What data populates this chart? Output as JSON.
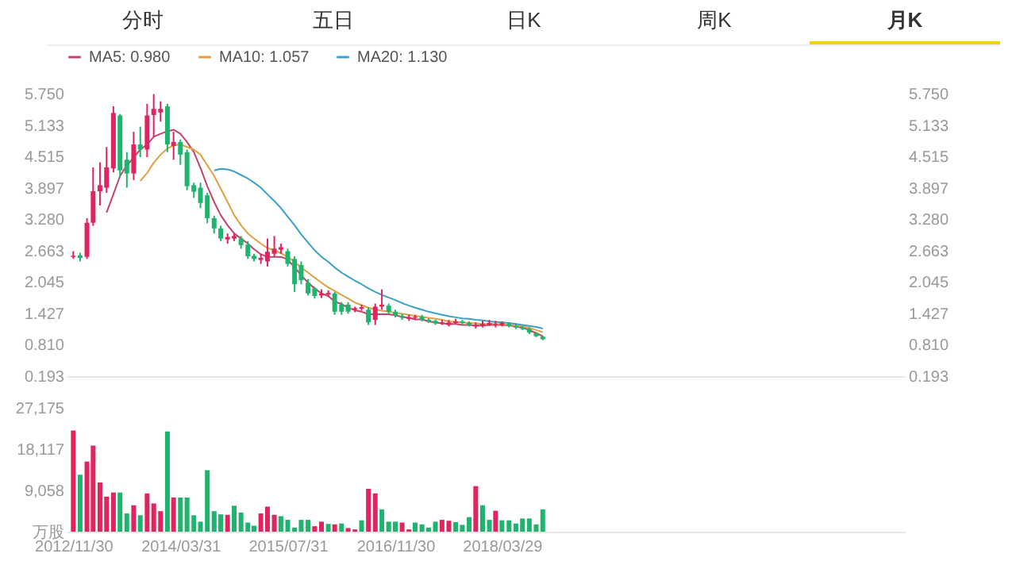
{
  "chart_data": [
    {
      "type": "candlestick",
      "annotations": [
        "分时",
        "五日",
        "日K",
        "周K",
        "月K"
      ],
      "x": [
        "2012-11-30",
        "2012-12-31",
        "2013-01-31",
        "2013-02-28",
        "2013-03-31",
        "2013-04-30",
        "2013-05-31",
        "2013-06-30",
        "2013-07-31",
        "2013-08-31",
        "2013-09-30",
        "2013-10-31",
        "2013-11-30",
        "2013-12-31",
        "2014-01-31",
        "2014-02-28",
        "2014-03-31",
        "2014-04-30",
        "2014-05-31",
        "2014-06-30",
        "2014-07-31",
        "2014-08-31",
        "2014-09-30",
        "2014-10-31",
        "2014-11-30",
        "2014-12-31",
        "2015-01-31",
        "2015-02-28",
        "2015-03-31",
        "2015-04-30",
        "2015-05-31",
        "2015-06-30",
        "2015-07-31",
        "2015-08-31",
        "2015-09-30",
        "2015-10-31",
        "2015-11-30",
        "2015-12-31",
        "2016-01-31",
        "2016-02-29",
        "2016-03-31",
        "2016-04-30",
        "2016-05-31",
        "2016-06-30",
        "2016-07-31",
        "2016-08-31",
        "2016-09-30",
        "2016-10-31",
        "2016-11-30",
        "2016-12-31",
        "2017-01-31",
        "2017-02-28",
        "2017-03-31",
        "2017-04-30",
        "2017-05-31",
        "2017-06-30",
        "2017-07-31",
        "2017-08-31",
        "2017-09-30",
        "2017-10-31",
        "2017-11-30",
        "2017-12-31",
        "2018-01-31",
        "2018-02-28",
        "2018-03-29",
        "2018-04-30",
        "2018-05-31",
        "2018-06-30",
        "2018-07-31",
        "2018-08-31",
        "2018-09-30"
      ],
      "ohlc": [
        [
          2.54,
          2.65,
          2.5,
          2.56
        ],
        [
          2.57,
          2.62,
          2.45,
          2.52
        ],
        [
          2.54,
          3.3,
          2.5,
          3.21
        ],
        [
          3.21,
          4.3,
          3.15,
          3.83
        ],
        [
          3.83,
          4.4,
          3.55,
          3.95
        ],
        [
          3.9,
          4.7,
          3.8,
          4.3
        ],
        [
          4.28,
          5.5,
          4.2,
          5.37
        ],
        [
          5.32,
          5.35,
          4.1,
          4.24
        ],
        [
          4.45,
          4.6,
          3.9,
          4.18
        ],
        [
          4.18,
          5.0,
          4.05,
          4.75
        ],
        [
          4.75,
          5.1,
          4.5,
          4.65
        ],
        [
          4.65,
          5.55,
          4.5,
          5.32
        ],
        [
          5.33,
          5.74,
          4.9,
          5.45
        ],
        [
          5.38,
          5.6,
          5.2,
          5.45
        ],
        [
          5.5,
          5.55,
          4.6,
          4.75
        ],
        [
          4.72,
          5.0,
          4.45,
          4.8
        ],
        [
          4.8,
          4.85,
          4.35,
          4.55
        ],
        [
          4.6,
          4.65,
          3.85,
          3.93
        ],
        [
          3.95,
          4.0,
          3.7,
          3.82
        ],
        [
          3.9,
          4.0,
          3.5,
          3.6
        ],
        [
          3.75,
          3.8,
          3.2,
          3.3
        ],
        [
          3.3,
          3.35,
          3.0,
          3.1
        ],
        [
          3.1,
          3.15,
          2.85,
          2.9
        ],
        [
          2.88,
          3.0,
          2.8,
          2.93
        ],
        [
          2.9,
          3.0,
          2.85,
          2.95
        ],
        [
          2.9,
          2.95,
          2.7,
          2.77
        ],
        [
          2.78,
          2.85,
          2.5,
          2.55
        ],
        [
          2.56,
          2.6,
          2.45,
          2.5
        ],
        [
          2.48,
          2.6,
          2.4,
          2.52
        ],
        [
          2.45,
          2.9,
          2.35,
          2.64
        ],
        [
          2.6,
          2.95,
          2.55,
          2.7
        ],
        [
          2.68,
          2.8,
          2.6,
          2.73
        ],
        [
          2.65,
          2.7,
          2.35,
          2.4
        ],
        [
          2.5,
          2.55,
          1.85,
          2.0
        ],
        [
          2.38,
          2.45,
          2.0,
          2.08
        ],
        [
          2.03,
          2.1,
          1.78,
          1.82
        ],
        [
          1.92,
          1.95,
          1.72,
          1.77
        ],
        [
          1.78,
          1.9,
          1.73,
          1.82
        ],
        [
          1.8,
          1.88,
          1.75,
          1.83
        ],
        [
          1.82,
          1.85,
          1.4,
          1.46
        ],
        [
          1.6,
          1.65,
          1.4,
          1.46
        ],
        [
          1.6,
          1.65,
          1.42,
          1.46
        ],
        [
          1.5,
          1.56,
          1.45,
          1.53
        ],
        [
          1.52,
          1.6,
          1.48,
          1.55
        ],
        [
          1.5,
          1.55,
          1.2,
          1.25
        ],
        [
          1.3,
          1.62,
          1.2,
          1.56
        ],
        [
          1.56,
          1.9,
          1.5,
          1.6
        ],
        [
          1.58,
          1.62,
          1.42,
          1.46
        ],
        [
          1.46,
          1.5,
          1.35,
          1.38
        ],
        [
          1.38,
          1.42,
          1.3,
          1.34
        ],
        [
          1.32,
          1.4,
          1.28,
          1.35
        ],
        [
          1.34,
          1.4,
          1.3,
          1.36
        ],
        [
          1.36,
          1.4,
          1.27,
          1.3
        ],
        [
          1.3,
          1.33,
          1.24,
          1.27
        ],
        [
          1.28,
          1.3,
          1.2,
          1.23
        ],
        [
          1.22,
          1.3,
          1.2,
          1.25
        ],
        [
          1.2,
          1.3,
          1.17,
          1.25
        ],
        [
          1.24,
          1.32,
          1.22,
          1.27
        ],
        [
          1.27,
          1.3,
          1.21,
          1.24
        ],
        [
          1.24,
          1.27,
          1.17,
          1.2
        ],
        [
          1.17,
          1.25,
          1.13,
          1.2
        ],
        [
          1.18,
          1.28,
          1.15,
          1.22
        ],
        [
          1.2,
          1.3,
          1.18,
          1.24
        ],
        [
          1.2,
          1.28,
          1.15,
          1.22
        ],
        [
          1.2,
          1.27,
          1.17,
          1.24
        ],
        [
          1.22,
          1.25,
          1.15,
          1.18
        ],
        [
          1.18,
          1.22,
          1.12,
          1.15
        ],
        [
          1.15,
          1.18,
          1.1,
          1.12
        ],
        [
          1.12,
          1.15,
          1.02,
          1.05
        ],
        [
          1.04,
          1.06,
          0.96,
          0.98
        ],
        [
          0.97,
          0.99,
          0.9,
          0.92
        ]
      ],
      "colors": [
        "#e0245e",
        "#1fb46e",
        "#e0245e",
        "#e0245e",
        "#e0245e",
        "#e0245e",
        "#e0245e",
        "#1fb46e",
        "#1fb46e",
        "#e0245e",
        "#1fb46e",
        "#e0245e",
        "#e0245e",
        "#e0245e",
        "#1fb46e",
        "#e0245e",
        "#1fb46e",
        "#1fb46e",
        "#1fb46e",
        "#1fb46e",
        "#1fb46e",
        "#1fb46e",
        "#1fb46e",
        "#e0245e",
        "#e0245e",
        "#1fb46e",
        "#1fb46e",
        "#1fb46e",
        "#e0245e",
        "#e0245e",
        "#e0245e",
        "#e0245e",
        "#1fb46e",
        "#1fb46e",
        "#1fb46e",
        "#1fb46e",
        "#1fb46e",
        "#e0245e",
        "#e0245e",
        "#1fb46e",
        "#1fb46e",
        "#1fb46e",
        "#e0245e",
        "#e0245e",
        "#1fb46e",
        "#e0245e",
        "#e0245e",
        "#1fb46e",
        "#1fb46e",
        "#1fb46e",
        "#e0245e",
        "#e0245e",
        "#1fb46e",
        "#1fb46e",
        "#1fb46e",
        "#e0245e",
        "#e0245e",
        "#e0245e",
        "#1fb46e",
        "#1fb46e",
        "#e0245e",
        "#e0245e",
        "#e0245e",
        "#e0245e",
        "#e0245e",
        "#1fb46e",
        "#1fb46e",
        "#1fb46e",
        "#1fb46e",
        "#1fb46e",
        "#1fb46e"
      ],
      "series": [
        {
          "type": "line",
          "name": "MA5: 0.980",
          "color": "#c2436a",
          "values": [
            null,
            null,
            null,
            null,
            null,
            3.41,
            3.77,
            4.13,
            4.34,
            4.49,
            4.65,
            4.75,
            4.9,
            4.96,
            5.01,
            5.04,
            4.96,
            4.8,
            4.6,
            4.29,
            3.93,
            3.62,
            3.36,
            3.16,
            3.0,
            2.9,
            2.8,
            2.69,
            2.59,
            2.54,
            2.54,
            2.54,
            2.49,
            2.33,
            2.18,
            2.03,
            1.92,
            1.82,
            1.77,
            1.66,
            1.61,
            1.54,
            1.49,
            1.46,
            1.41,
            1.41,
            1.41,
            1.41,
            1.39,
            1.36,
            1.34,
            1.31,
            1.31,
            1.27,
            1.25,
            1.23,
            1.22,
            1.22,
            1.2,
            1.2,
            1.19,
            1.19,
            1.2,
            1.2,
            1.2,
            1.19,
            1.17,
            1.15,
            1.1,
            1.04,
            0.98
          ]
        },
        {
          "type": "line",
          "name": "MA10: 1.057",
          "color": "#e0a040",
          "values": [
            null,
            null,
            null,
            null,
            null,
            null,
            null,
            null,
            null,
            null,
            4.03,
            4.19,
            4.39,
            4.55,
            4.67,
            4.73,
            4.75,
            4.7,
            4.65,
            4.55,
            4.34,
            4.13,
            3.88,
            3.62,
            3.36,
            3.16,
            3.0,
            2.9,
            2.8,
            2.71,
            2.67,
            2.61,
            2.54,
            2.44,
            2.33,
            2.23,
            2.13,
            2.03,
            1.94,
            1.87,
            1.79,
            1.72,
            1.64,
            1.59,
            1.54,
            1.5,
            1.48,
            1.46,
            1.44,
            1.42,
            1.4,
            1.38,
            1.36,
            1.34,
            1.32,
            1.3,
            1.27,
            1.26,
            1.25,
            1.24,
            1.23,
            1.22,
            1.22,
            1.22,
            1.21,
            1.2,
            1.19,
            1.17,
            1.14,
            1.1,
            1.06
          ]
        },
        {
          "type": "line",
          "name": "MA20: 1.130",
          "color": "#3aa0c8",
          "values": [
            null,
            null,
            null,
            null,
            null,
            null,
            null,
            null,
            null,
            null,
            null,
            null,
            null,
            null,
            null,
            null,
            null,
            null,
            null,
            null,
            null,
            4.24,
            4.27,
            4.26,
            4.22,
            4.15,
            4.08,
            4.0,
            3.9,
            3.77,
            3.64,
            3.5,
            3.33,
            3.16,
            2.98,
            2.82,
            2.67,
            2.54,
            2.44,
            2.33,
            2.23,
            2.15,
            2.07,
            2.0,
            1.92,
            1.85,
            1.79,
            1.74,
            1.69,
            1.63,
            1.58,
            1.54,
            1.5,
            1.46,
            1.43,
            1.4,
            1.37,
            1.35,
            1.33,
            1.32,
            1.3,
            1.29,
            1.27,
            1.26,
            1.25,
            1.24,
            1.22,
            1.2,
            1.18,
            1.16,
            1.13
          ]
        }
      ],
      "xlim": [
        "2012-10-31",
        "2023-03-31"
      ],
      "ylim": [
        0.193,
        5.75
      ],
      "yticks": [
        {
          "value": 0.193,
          "label": "0.193"
        },
        {
          "value": 0.81,
          "label": "0.810"
        },
        {
          "value": 1.427,
          "label": "1.427"
        },
        {
          "value": 2.045,
          "label": "2.045"
        },
        {
          "value": 2.663,
          "label": "2.663"
        },
        {
          "value": 3.28,
          "label": "3.280"
        },
        {
          "value": 3.897,
          "label": "3.897"
        },
        {
          "value": 4.515,
          "label": "4.515"
        },
        {
          "value": 5.133,
          "label": "5.133"
        },
        {
          "value": 5.75,
          "label": "5.750"
        }
      ],
      "y2lim": [
        0.193,
        5.75
      ],
      "y2ticks": [
        {
          "value": 0.193,
          "label": "0.193"
        },
        {
          "value": 0.81,
          "label": "0.810"
        },
        {
          "value": 1.427,
          "label": "1.427"
        },
        {
          "value": 2.045,
          "label": "2.045"
        },
        {
          "value": 2.663,
          "label": "2.663"
        },
        {
          "value": 3.28,
          "label": "3.280"
        },
        {
          "value": 3.897,
          "label": "3.897"
        },
        {
          "value": 4.515,
          "label": "4.515"
        },
        {
          "value": 5.133,
          "label": "5.133"
        },
        {
          "value": 5.75,
          "label": "5.750"
        }
      ],
      "legend": "top left",
      "tick_labels": "y"
    },
    {
      "type": "bar",
      "x": [
        "2012-11-30",
        "2012-12-31",
        "2013-01-31",
        "2013-02-28",
        "2013-03-31",
        "2013-04-30",
        "2013-05-31",
        "2013-06-30",
        "2013-07-31",
        "2013-08-31",
        "2013-09-30",
        "2013-10-31",
        "2013-11-30",
        "2013-12-31",
        "2014-01-31",
        "2014-02-28",
        "2014-03-31",
        "2014-04-30",
        "2014-05-31",
        "2014-06-30",
        "2014-07-31",
        "2014-08-31",
        "2014-09-30",
        "2014-10-31",
        "2014-11-30",
        "2014-12-31",
        "2015-01-31",
        "2015-02-28",
        "2015-03-31",
        "2015-04-30",
        "2015-05-31",
        "2015-06-30",
        "2015-07-31",
        "2015-08-31",
        "2015-09-30",
        "2015-10-31",
        "2015-11-30",
        "2015-12-31",
        "2016-01-31",
        "2016-02-29",
        "2016-03-31",
        "2016-04-30",
        "2016-05-31",
        "2016-06-30",
        "2016-07-31",
        "2016-08-31",
        "2016-09-30",
        "2016-10-31",
        "2016-11-30",
        "2016-12-31",
        "2017-01-31",
        "2017-02-28",
        "2017-03-31",
        "2017-04-30",
        "2017-05-31",
        "2017-06-30",
        "2017-07-31",
        "2017-08-31",
        "2017-09-30",
        "2017-10-31",
        "2017-11-30",
        "2017-12-31",
        "2018-01-31",
        "2018-02-28",
        "2018-03-29",
        "2018-04-30",
        "2018-05-31",
        "2018-06-30",
        "2018-07-31",
        "2018-08-31",
        "2018-09-30"
      ],
      "values": [
        22200,
        12500,
        15400,
        18900,
        10800,
        7700,
        8600,
        8600,
        4000,
        5800,
        3600,
        8400,
        6200,
        4500,
        22000,
        7500,
        7500,
        7500,
        3600,
        2200,
        13500,
        4500,
        3800,
        3700,
        5700,
        4200,
        2000,
        1300,
        4000,
        5500,
        3700,
        3400,
        2600,
        900,
        2600,
        2600,
        1200,
        2200,
        1700,
        1600,
        1800,
        800,
        500,
        2500,
        9400,
        8400,
        4900,
        2200,
        2200,
        2000,
        500,
        2000,
        1600,
        900,
        2200,
        2600,
        2400,
        2100,
        1500,
        3200,
        10000,
        5800,
        2600,
        4600,
        2500,
        2500,
        1800,
        2900,
        2900,
        1600,
        4900
      ],
      "colors": [
        "#e0245e",
        "#1fb46e",
        "#e0245e",
        "#e0245e",
        "#e0245e",
        "#e0245e",
        "#e0245e",
        "#1fb46e",
        "#1fb46e",
        "#e0245e",
        "#1fb46e",
        "#e0245e",
        "#e0245e",
        "#e0245e",
        "#1fb46e",
        "#e0245e",
        "#1fb46e",
        "#1fb46e",
        "#1fb46e",
        "#1fb46e",
        "#1fb46e",
        "#1fb46e",
        "#1fb46e",
        "#e0245e",
        "#1fb46e",
        "#1fb46e",
        "#1fb46e",
        "#1fb46e",
        "#e0245e",
        "#e0245e",
        "#e0245e",
        "#1fb46e",
        "#1fb46e",
        "#1fb46e",
        "#1fb46e",
        "#1fb46e",
        "#e0245e",
        "#e0245e",
        "#1fb46e",
        "#e0245e",
        "#1fb46e",
        "#e0245e",
        "#e0245e",
        "#1fb46e",
        "#e0245e",
        "#e0245e",
        "#1fb46e",
        "#1fb46e",
        "#1fb46e",
        "#e0245e",
        "#e0245e",
        "#1fb46e",
        "#1fb46e",
        "#1fb46e",
        "#1fb46e",
        "#e0245e",
        "#e0245e",
        "#1fb46e",
        "#1fb46e",
        "#1fb46e",
        "#e0245e",
        "#1fb46e",
        "#1fb46e",
        "#e0245e",
        "#1fb46e",
        "#1fb46e",
        "#1fb46e",
        "#1fb46e",
        "#1fb46e",
        "#1fb46e",
        "#1fb46e"
      ],
      "xlim": [
        "2012-10-31",
        "2023-03-31"
      ],
      "xticks": [
        {
          "value": "2012-11-30",
          "label": "2012/11/30"
        },
        {
          "value": "2014-03-31",
          "label": "2014/03/31"
        },
        {
          "value": "2015-07-31",
          "label": "2015/07/31"
        },
        {
          "value": "2016-11-30",
          "label": "2016/11/30"
        },
        {
          "value": "2018-03-29",
          "label": "2018/03/29"
        }
      ],
      "ylim": [
        0,
        27175
      ],
      "yticks": [
        {
          "value": 0,
          "label": "万股"
        },
        {
          "value": 9058,
          "label": "9,058"
        },
        {
          "value": 18117,
          "label": "18,117"
        },
        {
          "value": 27175,
          "label": "27,175"
        }
      ]
    }
  ]
}
